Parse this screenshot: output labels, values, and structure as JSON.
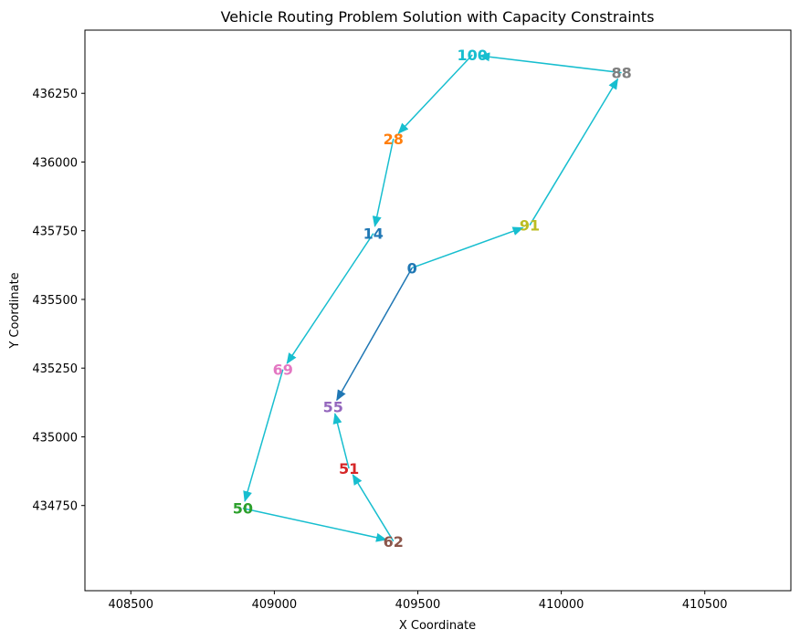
{
  "chart_data": {
    "type": "line",
    "title": "Vehicle Routing Problem Solution with Capacity Constraints",
    "xlabel": "X Coordinate",
    "ylabel": "Y Coordinate",
    "xlim": [
      408340,
      410800
    ],
    "ylim": [
      434440,
      436480
    ],
    "xticks": [
      408500,
      409000,
      409500,
      410000,
      410500
    ],
    "yticks": [
      434750,
      435000,
      435250,
      435500,
      435750,
      436000,
      436250
    ],
    "grid": false,
    "nodes": [
      {
        "id": "0",
        "x": 409480,
        "y": 435615,
        "color": "#1f77b4",
        "label": "0"
      },
      {
        "id": "91",
        "x": 409890,
        "y": 435770,
        "color": "#bcbd22",
        "label": "91"
      },
      {
        "id": "88",
        "x": 410210,
        "y": 436325,
        "color": "#7f7f7f",
        "label": "88"
      },
      {
        "id": "100",
        "x": 409690,
        "y": 436390,
        "color": "#17becf",
        "label": "100"
      },
      {
        "id": "28",
        "x": 409415,
        "y": 436085,
        "color": "#ff7f0e",
        "label": "28"
      },
      {
        "id": "14",
        "x": 409345,
        "y": 435740,
        "color": "#1f77b4",
        "label": "14"
      },
      {
        "id": "69",
        "x": 409030,
        "y": 435245,
        "color": "#e377c2",
        "label": "69"
      },
      {
        "id": "50",
        "x": 408890,
        "y": 434740,
        "color": "#2ca02c",
        "label": "50"
      },
      {
        "id": "62",
        "x": 409415,
        "y": 434620,
        "color": "#8c564b",
        "label": "62"
      },
      {
        "id": "51",
        "x": 409260,
        "y": 434885,
        "color": "#d62728",
        "label": "51"
      },
      {
        "id": "55",
        "x": 409205,
        "y": 435110,
        "color": "#9467bd",
        "label": "55"
      }
    ],
    "series": [
      {
        "color": "#17becf",
        "route": [
          "0",
          "91",
          "88",
          "100",
          "28",
          "14",
          "69",
          "50",
          "62",
          "51",
          "55"
        ]
      },
      {
        "color": "#1f77b4",
        "route": [
          "0",
          "55"
        ]
      }
    ]
  }
}
